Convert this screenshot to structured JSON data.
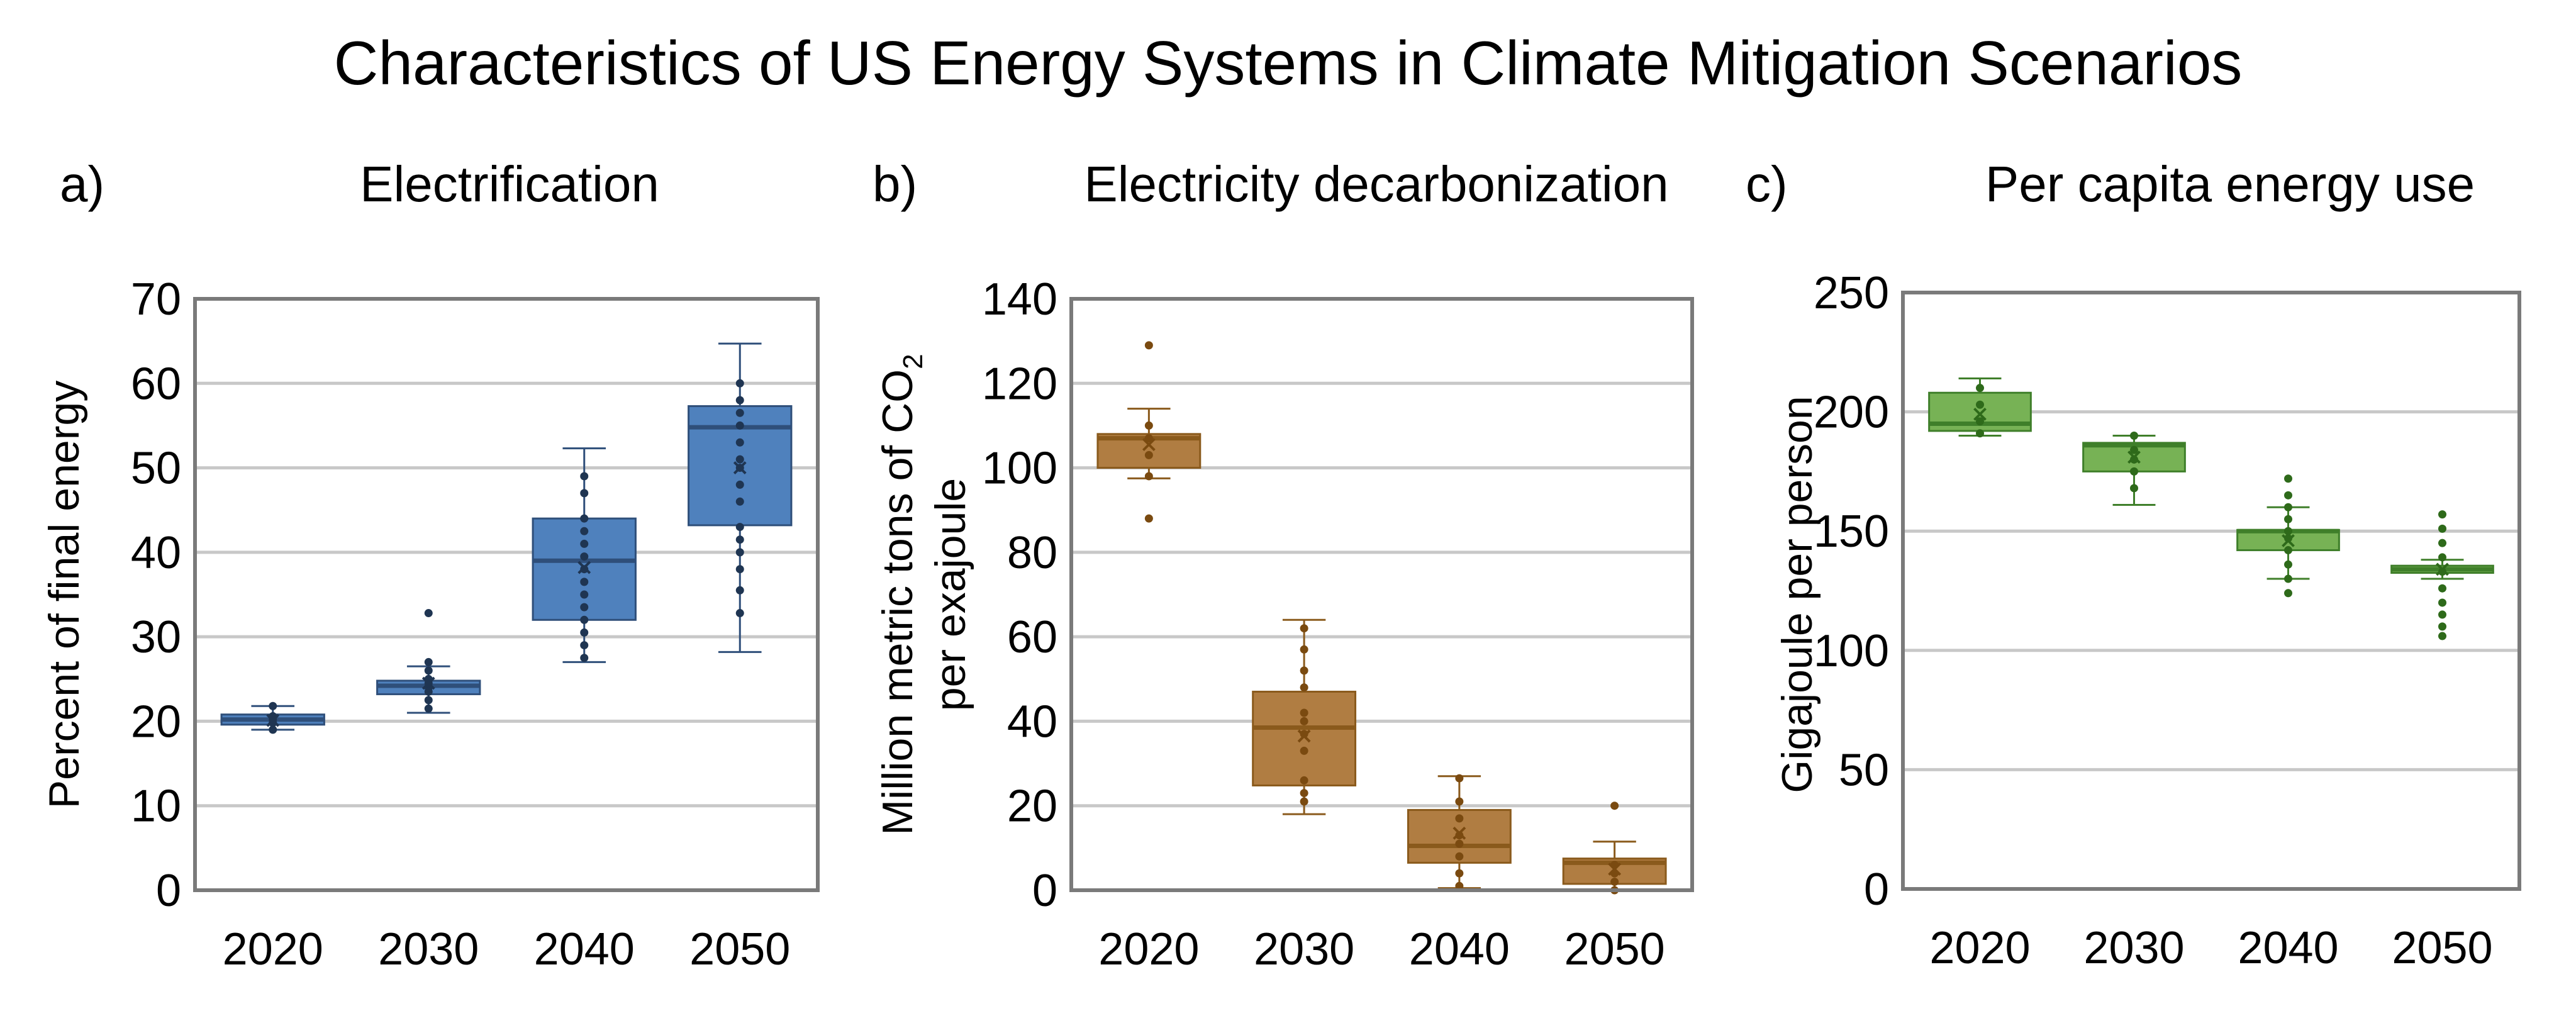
{
  "title": "Characteristics of US Energy Systems in Climate Mitigation Scenarios",
  "chart_data": [
    {
      "type": "box",
      "panel_label": "a)",
      "title": "Electrification",
      "ylabel": "Percent of final energy",
      "ylim": [
        0,
        70
      ],
      "yticks": [
        0,
        10,
        20,
        30,
        40,
        50,
        60,
        70
      ],
      "categories": [
        "2020",
        "2030",
        "2040",
        "2050"
      ],
      "color": "#4f81bd",
      "stroke": "#2f4f7a",
      "point_color": "#1f3552",
      "boxes": [
        {
          "year": "2020",
          "whisker_low": 19.0,
          "q1": 19.6,
          "median": 20.2,
          "q3": 20.8,
          "whisker_high": 21.8,
          "mean": 20.1,
          "points": [
            19.0,
            19.8,
            20.2,
            20.6,
            21.8
          ]
        },
        {
          "year": "2030",
          "whisker_low": 21.0,
          "q1": 23.2,
          "median": 24.2,
          "q3": 24.8,
          "whisker_high": 26.5,
          "mean": 24.5,
          "points": [
            21.5,
            22.5,
            23.5,
            24.0,
            24.5,
            25.0,
            26.0,
            27.0,
            32.8
          ]
        },
        {
          "year": "2040",
          "whisker_low": 27.0,
          "q1": 32.0,
          "median": 39.0,
          "q3": 44.0,
          "whisker_high": 52.3,
          "mean": 38.2,
          "points": [
            27.5,
            29.0,
            30.5,
            32.0,
            33.5,
            35.0,
            36.5,
            38.0,
            39.5,
            41.0,
            42.5,
            44.0,
            47.0,
            49.0
          ]
        },
        {
          "year": "2050",
          "whisker_low": 28.2,
          "q1": 43.2,
          "median": 54.8,
          "q3": 57.3,
          "whisker_high": 64.7,
          "mean": 50.0,
          "points": [
            32.8,
            35.5,
            38.0,
            40.0,
            41.5,
            43.0,
            46.0,
            48.0,
            50.0,
            51.0,
            53.0,
            55.0,
            56.5,
            58.0,
            60.0
          ]
        }
      ]
    },
    {
      "type": "box",
      "panel_label": "b)",
      "title": "Electricity decarbonization",
      "ylabel_line1": "Million metric tons of CO",
      "ylabel_sub": "2",
      "ylabel_line2": "per exajoule",
      "ylim": [
        0,
        140
      ],
      "yticks": [
        0,
        20,
        40,
        60,
        80,
        100,
        120,
        140
      ],
      "categories": [
        "2020",
        "2030",
        "2040",
        "2050"
      ],
      "color": "#b07d42",
      "stroke": "#8a5a1c",
      "point_color": "#7a4a10",
      "boxes": [
        {
          "year": "2020",
          "whisker_low": 97.5,
          "q1": 100.0,
          "median": 107.0,
          "q3": 108.0,
          "whisker_high": 114.0,
          "mean": 105.5,
          "points": [
            88.0,
            98.0,
            103.0,
            107.0,
            110.0,
            129.0
          ]
        },
        {
          "year": "2030",
          "whisker_low": 18.0,
          "q1": 24.8,
          "median": 38.5,
          "q3": 47.0,
          "whisker_high": 64.0,
          "mean": 36.5,
          "points": [
            21.0,
            23.0,
            26.0,
            33.0,
            37.0,
            40.0,
            42.0,
            48.0,
            52.0,
            57.0,
            62.0
          ]
        },
        {
          "year": "2040",
          "whisker_low": 0.5,
          "q1": 6.5,
          "median": 10.5,
          "q3": 19.0,
          "whisker_high": 27.0,
          "mean": 13.5,
          "points": [
            1.0,
            4.0,
            8.0,
            11.0,
            13.0,
            17.0,
            21.0,
            26.5
          ]
        },
        {
          "year": "2050",
          "whisker_low": 0.0,
          "q1": 1.5,
          "median": 6.5,
          "q3": 7.5,
          "whisker_high": 11.5,
          "mean": 5.0,
          "points": [
            0.0,
            2.0,
            4.0,
            6.0,
            20.0
          ]
        }
      ]
    },
    {
      "type": "box",
      "panel_label": "c)",
      "title": "Per capita energy use",
      "ylabel": "Gigajoule per person",
      "ylim": [
        0,
        250
      ],
      "yticks": [
        0,
        50,
        100,
        150,
        200,
        250
      ],
      "categories": [
        "2020",
        "2030",
        "2040",
        "2050"
      ],
      "color": "#77b255",
      "stroke": "#3f7f2a",
      "point_color": "#2e6a1a",
      "boxes": [
        {
          "year": "2020",
          "whisker_low": 190.0,
          "q1": 192.0,
          "median": 195.0,
          "q3": 208.0,
          "whisker_high": 214.0,
          "mean": 199.0,
          "points": [
            191.0,
            196.0,
            203.0,
            210.0
          ]
        },
        {
          "year": "2030",
          "whisker_low": 161.0,
          "q1": 175.0,
          "median": 186.0,
          "q3": 187.0,
          "whisker_high": 190.0,
          "mean": 181.0,
          "points": [
            168.0,
            175.0,
            180.0,
            184.0,
            190.0
          ]
        },
        {
          "year": "2040",
          "whisker_low": 130.0,
          "q1": 142.0,
          "median": 150.0,
          "q3": 150.5,
          "whisker_high": 160.0,
          "mean": 146.0,
          "points": [
            124.0,
            130.0,
            136.0,
            142.0,
            147.0,
            150.0,
            155.0,
            160.0,
            165.0,
            172.0
          ]
        },
        {
          "year": "2050",
          "whisker_low": 130.0,
          "q1": 132.5,
          "median": 134.0,
          "q3": 135.5,
          "whisker_high": 138.0,
          "mean": 134.0,
          "points": [
            106.0,
            110.0,
            115.0,
            120.0,
            126.0,
            133.0,
            139.0,
            145.0,
            151.0,
            157.0
          ]
        }
      ]
    }
  ]
}
